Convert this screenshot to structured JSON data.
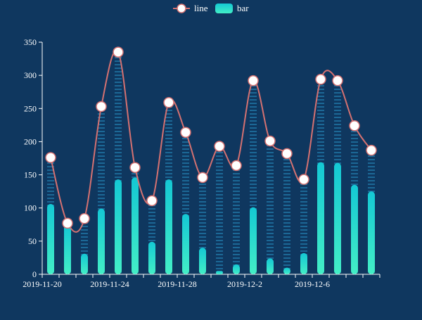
{
  "chart_data": {
    "type": "bar",
    "legend": {
      "placement": "top-center",
      "items": [
        {
          "key": "line",
          "label": "line",
          "icon": "circle-line-icon"
        },
        {
          "key": "bar",
          "label": "bar",
          "icon": "rounded-rect-icon"
        }
      ]
    },
    "x_tick_labels": [
      "2019-11-20",
      "2019-11-24",
      "2019-11-28",
      "2019-12-2",
      "2019-12-6"
    ],
    "dates": [
      "2019-11-20",
      "2019-11-21",
      "2019-11-22",
      "2019-11-23",
      "2019-11-24",
      "2019-11-25",
      "2019-11-26",
      "2019-11-27",
      "2019-11-28",
      "2019-11-29",
      "2019-11-30",
      "2019-12-1",
      "2019-12-2",
      "2019-12-3",
      "2019-12-4",
      "2019-12-5",
      "2019-12-6",
      "2019-12-7",
      "2019-12-8",
      "2019-12-9"
    ],
    "y_ticks": [
      0,
      50,
      100,
      150,
      200,
      250,
      300,
      350
    ],
    "ylim": [
      0,
      350
    ],
    "series": [
      {
        "name": "line",
        "kind": "line",
        "smooth": true,
        "values": [
          176,
          77,
          84,
          253,
          335,
          161,
          111,
          259,
          214,
          146,
          193,
          164,
          292,
          201,
          182,
          143,
          294,
          292,
          224,
          187
        ]
      },
      {
        "name": "bar",
        "kind": "bar",
        "values": [
          106,
          75,
          31,
          99,
          143,
          146,
          49,
          143,
          91,
          40,
          5,
          15,
          101,
          24,
          10,
          32,
          169,
          168,
          135,
          125
        ]
      },
      {
        "name": "",
        "kind": "dotted-bar",
        "values": [
          176,
          77,
          84,
          253,
          335,
          161,
          111,
          259,
          214,
          146,
          193,
          164,
          292,
          201,
          182,
          143,
          294,
          292,
          224,
          187
        ]
      }
    ],
    "colors": {
      "background": "#0f375f",
      "line": "#d47171",
      "marker_fill": "#ffffff",
      "bar_top": "#14c8d4",
      "bar_bottom": "#43eec6",
      "dotted_bar": "#1e6e9c",
      "axis": "#ffffff"
    }
  }
}
